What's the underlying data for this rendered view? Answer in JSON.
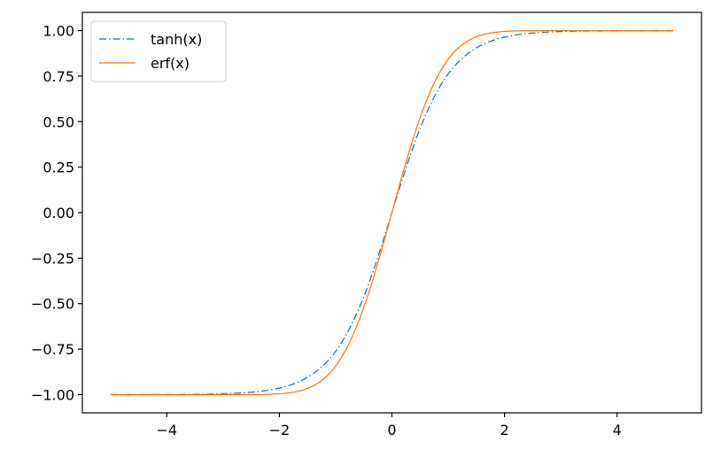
{
  "chart_data": {
    "type": "line",
    "title": "",
    "xlabel": "",
    "ylabel": "",
    "xlim": [
      -5.5,
      5.5
    ],
    "ylim": [
      -1.1,
      1.1
    ],
    "xticks": [
      -4,
      -2,
      0,
      2,
      4
    ],
    "yticks": [
      -1.0,
      -0.75,
      -0.5,
      -0.25,
      0.0,
      0.25,
      0.5,
      0.75,
      1.0
    ],
    "xtick_labels": [
      "−4",
      "−2",
      "0",
      "2",
      "4"
    ],
    "ytick_labels": [
      "−1.00",
      "−0.75",
      "−0.50",
      "−0.25",
      "0.00",
      "0.25",
      "0.50",
      "0.75",
      "1.00"
    ],
    "grid": false,
    "legend_position": "upper-left",
    "series": [
      {
        "name": "tanh(x)",
        "function": "tanh",
        "color": "#1f77b4",
        "line_style": "dash-dot",
        "x": [
          -5,
          -4.5,
          -4,
          -3.5,
          -3,
          -2.5,
          -2,
          -1.75,
          -1.5,
          -1.25,
          -1,
          -0.75,
          -0.5,
          -0.25,
          0,
          0.25,
          0.5,
          0.75,
          1,
          1.25,
          1.5,
          1.75,
          2,
          2.5,
          3,
          3.5,
          4,
          4.5,
          5
        ],
        "y": [
          -0.9999,
          -0.9998,
          -0.9993,
          -0.9982,
          -0.9951,
          -0.9866,
          -0.964,
          -0.9414,
          -0.9051,
          -0.8483,
          -0.7616,
          -0.6351,
          -0.4621,
          -0.2449,
          0,
          0.2449,
          0.4621,
          0.6351,
          0.7616,
          0.8483,
          0.9051,
          0.9414,
          0.964,
          0.9866,
          0.9951,
          0.9982,
          0.9993,
          0.9998,
          0.9999
        ]
      },
      {
        "name": "erf(x)",
        "function": "erf",
        "color": "#ff7f0e",
        "line_style": "solid",
        "x": [
          -5,
          -4,
          -3,
          -2.5,
          -2,
          -1.75,
          -1.5,
          -1.25,
          -1,
          -0.75,
          -0.5,
          -0.25,
          0,
          0.25,
          0.5,
          0.75,
          1,
          1.25,
          1.5,
          1.75,
          2,
          2.5,
          3,
          4,
          5
        ],
        "y": [
          -1,
          -1,
          -1,
          -0.9996,
          -0.9953,
          -0.9867,
          -0.9661,
          -0.9229,
          -0.8427,
          -0.7112,
          -0.5205,
          -0.2763,
          0,
          0.2763,
          0.5205,
          0.7112,
          0.8427,
          0.9229,
          0.9661,
          0.9867,
          0.9953,
          0.9996,
          1,
          1,
          1
        ]
      }
    ]
  }
}
